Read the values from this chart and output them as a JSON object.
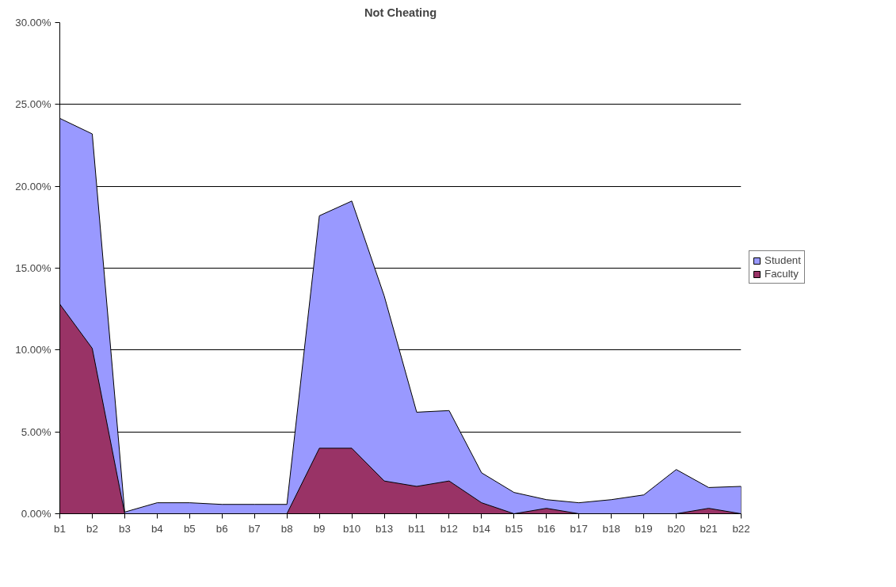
{
  "chart_data": {
    "type": "area",
    "title": "Not Cheating",
    "categories": [
      "b1",
      "b2",
      "b3",
      "b4",
      "b5",
      "b6",
      "b7",
      "b8",
      "b9",
      "b10",
      "b13",
      "b11",
      "b12",
      "b14",
      "b15",
      "b16",
      "b17",
      "b18",
      "b19",
      "b20",
      "b21",
      "b22"
    ],
    "series": [
      {
        "name": "Student",
        "color": "#9999ff",
        "values": [
          24.15,
          23.2,
          0.1,
          0.67,
          0.67,
          0.57,
          0.57,
          0.57,
          18.2,
          19.1,
          13.3,
          6.2,
          6.3,
          2.5,
          1.3,
          0.86,
          0.67,
          0.86,
          1.15,
          2.7,
          1.6,
          1.67
        ]
      },
      {
        "name": "Faculty",
        "color": "#993366",
        "values": [
          12.8,
          10.1,
          0,
          0,
          0,
          0,
          0,
          0,
          4.0,
          4.0,
          2.0,
          1.67,
          2.0,
          0.67,
          0,
          0.33,
          0,
          0,
          0,
          0,
          0.33,
          0
        ]
      }
    ],
    "ylim": [
      0,
      30
    ],
    "yticks": [
      {
        "value": 0,
        "label": "0.00%"
      },
      {
        "value": 5,
        "label": "5.00%"
      },
      {
        "value": 10,
        "label": "10.00%"
      },
      {
        "value": 15,
        "label": "15.00%"
      },
      {
        "value": 20,
        "label": "20.00%"
      },
      {
        "value": 25,
        "label": "25.00%"
      },
      {
        "value": 30,
        "label": "30.00%"
      }
    ],
    "grid": "y",
    "legend": "right"
  }
}
